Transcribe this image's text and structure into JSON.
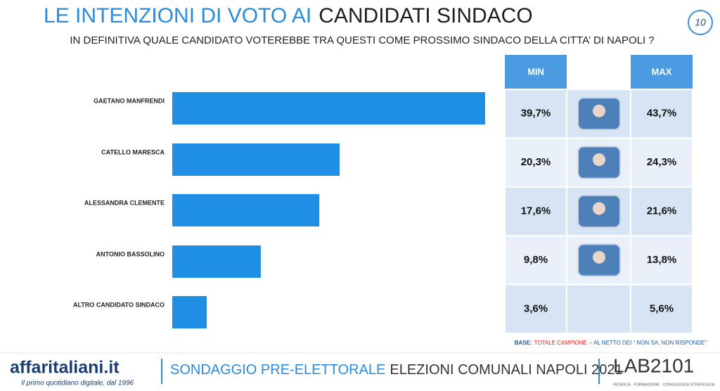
{
  "chart_data": {
    "type": "bar",
    "title": "LE INTENZIONI DI VOTO AI",
    "title_highlight": "CANDIDATI SINDACO",
    "subtitle": "IN DEFINITIVA QUALE CANDIDATO VOTEREBBE TRA QUESTI COME PROSSIMO SINDACO DELLA CITTA’ DI NAPOLI ?",
    "page_number": "10",
    "categories": [
      "GAETANO MANFRENDI",
      "CATELLO MARESCA",
      "ALESSANDRA CLEMENTE",
      "ANTONIO BASSOLINO",
      "ALTRO CANDIDATO SINDACO"
    ],
    "color": "#1f8fe5",
    "series": [
      {
        "name": "MIN",
        "values": [
          39.7,
          20.3,
          17.6,
          9.8,
          3.6
        ],
        "value_labels": [
          "39,7%",
          "20,3%",
          "17,6%",
          "9,8%",
          "3,6%"
        ]
      },
      {
        "name": "MAX",
        "values": [
          43.7,
          24.3,
          21.6,
          13.8,
          5.6
        ],
        "value_labels": [
          "43,7%",
          "24,3%",
          "21,6%",
          "13,8%",
          "5,6%"
        ]
      }
    ],
    "note": {
      "label": "BASE:",
      "highlight": "TOTALE CAMPIONE",
      "text": "– AL NETTO DEI “ NON SA, NON RISPONDE”"
    },
    "footer": {
      "brand": "affaritaliani.it",
      "tagline": "Il primo quotidiano digitale, dal 1996",
      "survey": "SONDAGGIO PRE-ELETTORALE",
      "survey_detail": "ELEZIONI COMUNALI NAPOLI 2021",
      "lab": "LAB2101",
      "lab_tagline": "RICERCA · FORMAZIONE · CONSULENZA STRATEGICA"
    }
  }
}
